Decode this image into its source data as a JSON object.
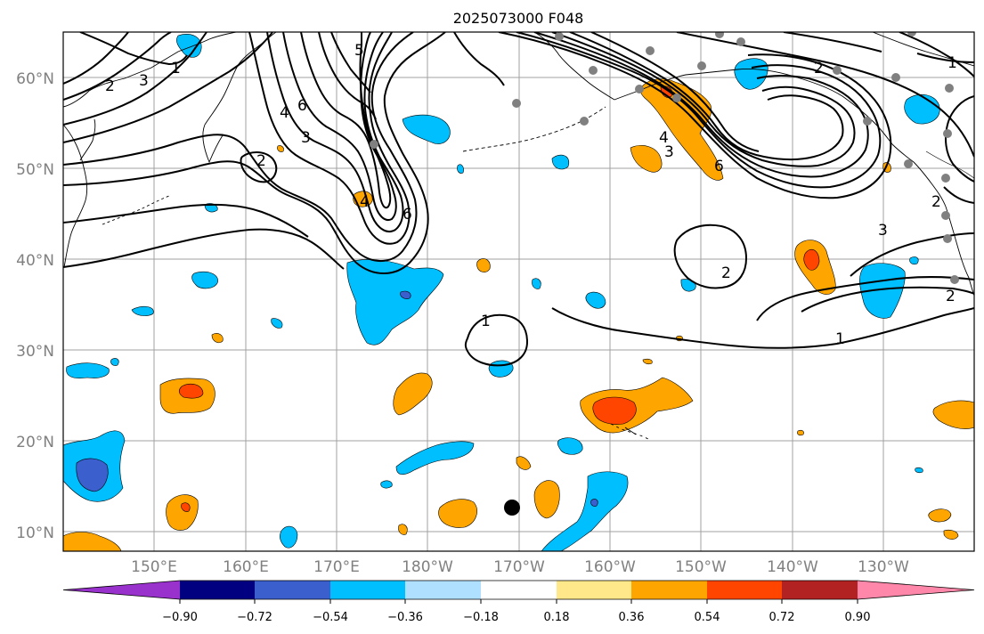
{
  "title": "2025073000 F048",
  "map": {
    "lat_labels": [
      "60°N",
      "50°N",
      "40°N",
      "30°N",
      "20°N",
      "10°N"
    ],
    "lon_labels": [
      "150°E",
      "160°E",
      "170°E",
      "180°W",
      "170°W",
      "160°W",
      "150°W",
      "140°W",
      "130°W"
    ],
    "gridlines": true,
    "contour_labels": [
      "1",
      "2",
      "3",
      "4",
      "5",
      "6"
    ],
    "coastline_color": "#000000",
    "station_marker_color": "#808080",
    "storm_marker_color": "#000000"
  },
  "colorbar": {
    "orientation": "horizontal",
    "tick_labels": [
      "−0.90",
      "−0.72",
      "−0.54",
      "−0.36",
      "−0.18",
      "0.18",
      "0.36",
      "0.54",
      "0.72",
      "0.90"
    ],
    "colors": [
      "#9932CC",
      "#000080",
      "#3B5FCD",
      "#00BFFF",
      "#B0E0FF",
      "#FFFFFF",
      "#FFE88A",
      "#FFA500",
      "#FF4500",
      "#B22222",
      "#FF88AA"
    ],
    "extend": "both"
  }
}
